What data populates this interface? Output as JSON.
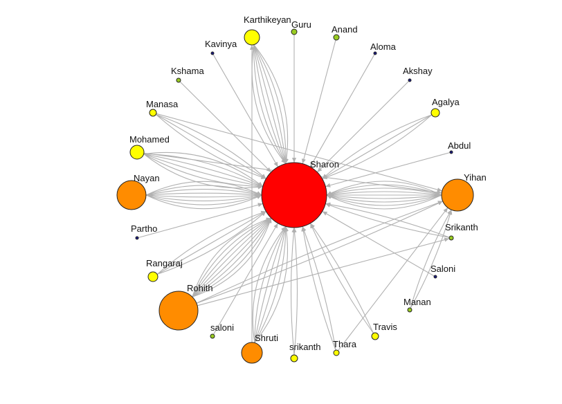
{
  "colors": {
    "hub": "#ff0000",
    "large": "#ff8c00",
    "medium": "#ffff00",
    "small": "#99cc22",
    "tiny": "#1a1a80",
    "edge": "#b0b0b0"
  },
  "graph": {
    "nodes": [
      {
        "id": "Sharon",
        "label": "Sharon",
        "group": "hub"
      },
      {
        "id": "Karthikeyan",
        "label": "Karthikeyan",
        "group": "medium"
      },
      {
        "id": "Guru",
        "label": "Guru",
        "group": "small"
      },
      {
        "id": "Anand",
        "label": "Anand",
        "group": "small"
      },
      {
        "id": "Aloma",
        "label": "Aloma",
        "group": "tiny"
      },
      {
        "id": "Akshay",
        "label": "Akshay",
        "group": "tiny"
      },
      {
        "id": "Agalya",
        "label": "Agalya",
        "group": "medium"
      },
      {
        "id": "Abdul",
        "label": "Abdul",
        "group": "tiny"
      },
      {
        "id": "Yihan",
        "label": "Yihan",
        "group": "large"
      },
      {
        "id": "Srikanth",
        "label": "Srikanth",
        "group": "small"
      },
      {
        "id": "Saloni",
        "label": "Saloni",
        "group": "tiny"
      },
      {
        "id": "Manan",
        "label": "Manan",
        "group": "small"
      },
      {
        "id": "Travis",
        "label": "Travis",
        "group": "medium"
      },
      {
        "id": "Thara",
        "label": "Thara",
        "group": "medium"
      },
      {
        "id": "srikanth",
        "label": "srikanth",
        "group": "medium"
      },
      {
        "id": "Shruti",
        "label": "Shruti",
        "group": "large"
      },
      {
        "id": "saloni",
        "label": "saloni",
        "group": "small"
      },
      {
        "id": "Rohith",
        "label": "Rohith",
        "group": "large"
      },
      {
        "id": "Rangaraj",
        "label": "Rangaraj",
        "group": "medium"
      },
      {
        "id": "Partho",
        "label": "Partho",
        "group": "tiny"
      },
      {
        "id": "Nayan",
        "label": "Nayan",
        "group": "large"
      },
      {
        "id": "Mohamed",
        "label": "Mohamed",
        "group": "medium"
      },
      {
        "id": "Manasa",
        "label": "Manasa",
        "group": "medium"
      },
      {
        "id": "Kshama",
        "label": "Kshama",
        "group": "small"
      },
      {
        "id": "Kavinya",
        "label": "Kavinya",
        "group": "tiny"
      }
    ],
    "edges": [
      {
        "source": "Karthikeyan",
        "target": "Sharon",
        "count": 7
      },
      {
        "source": "Guru",
        "target": "Sharon",
        "count": 1
      },
      {
        "source": "Anand",
        "target": "Sharon",
        "count": 1
      },
      {
        "source": "Aloma",
        "target": "Sharon",
        "count": 1
      },
      {
        "source": "Akshay",
        "target": "Sharon",
        "count": 1
      },
      {
        "source": "Agalya",
        "target": "Sharon",
        "count": 3
      },
      {
        "source": "Abdul",
        "target": "Sharon",
        "count": 1
      },
      {
        "source": "Yihan",
        "target": "Sharon",
        "count": 9
      },
      {
        "source": "Srikanth",
        "target": "Sharon",
        "count": 2
      },
      {
        "source": "Saloni",
        "target": "Sharon",
        "count": 1
      },
      {
        "source": "Manan",
        "target": "Yihan",
        "count": 2
      },
      {
        "source": "Travis",
        "target": "Sharon",
        "count": 2
      },
      {
        "source": "Thara",
        "target": "Sharon",
        "count": 2
      },
      {
        "source": "Thara",
        "target": "Yihan",
        "count": 1
      },
      {
        "source": "srikanth",
        "target": "Sharon",
        "count": 2
      },
      {
        "source": "Shruti",
        "target": "Sharon",
        "count": 6
      },
      {
        "source": "Shruti",
        "target": "Karthikeyan",
        "count": 1
      },
      {
        "source": "saloni",
        "target": "Sharon",
        "count": 1
      },
      {
        "source": "Rohith",
        "target": "Sharon",
        "count": 8
      },
      {
        "source": "Rohith",
        "target": "Yihan",
        "count": 2
      },
      {
        "source": "Rohith",
        "target": "Srikanth",
        "count": 1
      },
      {
        "source": "Rangaraj",
        "target": "Sharon",
        "count": 3
      },
      {
        "source": "Partho",
        "target": "Sharon",
        "count": 1
      },
      {
        "source": "Nayan",
        "target": "Sharon",
        "count": 8
      },
      {
        "source": "Mohamed",
        "target": "Sharon",
        "count": 6
      },
      {
        "source": "Mohamed",
        "target": "Yihan",
        "count": 1
      },
      {
        "source": "Manasa",
        "target": "Sharon",
        "count": 3
      },
      {
        "source": "Manasa",
        "target": "Yihan",
        "count": 1
      },
      {
        "source": "Kshama",
        "target": "Sharon",
        "count": 1
      },
      {
        "source": "Kavinya",
        "target": "Sharon",
        "count": 1
      }
    ]
  }
}
